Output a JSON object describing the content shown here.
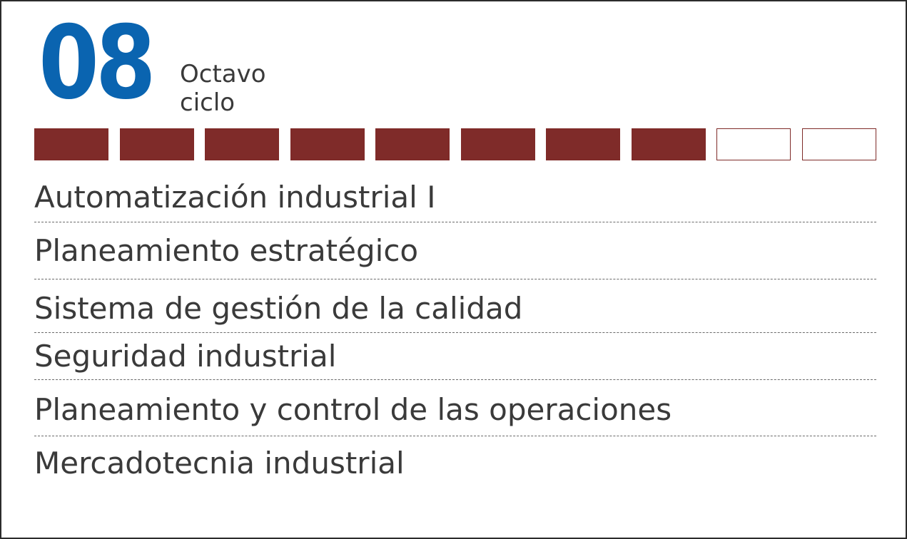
{
  "header": {
    "number": "08",
    "label_line1": "Octavo",
    "label_line2": "ciclo"
  },
  "progress": {
    "completed": 8,
    "total": 10,
    "filled_color": "#7f2b29",
    "empty_color": "#ffffff"
  },
  "colors": {
    "number": "#0a64b0",
    "text": "#3a3a3a",
    "border": "#2b2b2b"
  },
  "courses": [
    "Automatización industrial I",
    "Planeamiento estratégico",
    "Sistema de gestión de la calidad",
    "Seguridad industrial",
    "Planeamiento y control de las operaciones",
    "Mercadotecnia industrial"
  ]
}
